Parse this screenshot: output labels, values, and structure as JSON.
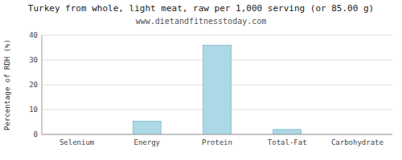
{
  "chart_data": {
    "type": "bar",
    "title": "Turkey from whole, light meat, raw per 1,000 serving (or 85.00 g)",
    "subtitle": "www.dietandfitnesstoday.com",
    "categories": [
      "Selenium",
      "Energy",
      "Protein",
      "Total-Fat",
      "Carbohydrate"
    ],
    "values": [
      0,
      5.3,
      36,
      2.0,
      0
    ],
    "color": "#add8e6",
    "ylabel": "Percentage of RDH (%)",
    "ylim": [
      0,
      40
    ],
    "yticks": [
      0,
      10,
      20,
      30,
      40
    ],
    "grid": true
  }
}
